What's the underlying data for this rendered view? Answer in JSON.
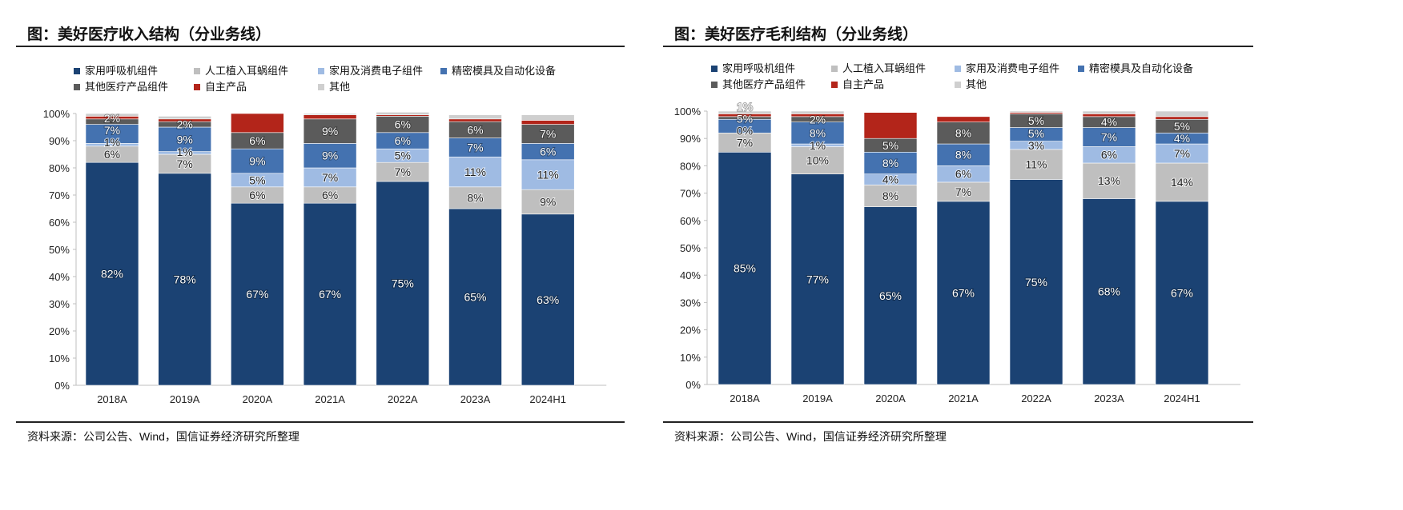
{
  "chart_data": [
    {
      "type": "bar",
      "stacked": true,
      "title": "图：美好医疗收入结构（分业务线）",
      "source": "资料来源：公司公告、Wind，国信证券经济研究所整理",
      "categories": [
        "2018A",
        "2019A",
        "2020A",
        "2021A",
        "2022A",
        "2023A",
        "2024H1"
      ],
      "ylim": [
        0,
        100
      ],
      "yticks": [
        "0%",
        "10%",
        "20%",
        "30%",
        "40%",
        "50%",
        "60%",
        "70%",
        "80%",
        "90%",
        "100%"
      ],
      "legend_position": "top-left",
      "series": [
        {
          "name": "家用呼吸机组件",
          "color": "#1b4273",
          "values": [
            82,
            78,
            67,
            67,
            75,
            65,
            63
          ],
          "labels": [
            "82%",
            "78%",
            "67%",
            "67%",
            "75%",
            "65%",
            "63%"
          ]
        },
        {
          "name": "人工植入耳蜗组件",
          "color": "#bfbfbf",
          "values": [
            6,
            7,
            6,
            6,
            7,
            8,
            9
          ],
          "labels": [
            "6%",
            "7%",
            "6%",
            "6%",
            "7%",
            "8%",
            "9%"
          ]
        },
        {
          "name": "家用及消费电子组件",
          "color": "#9fbbe3",
          "values": [
            1,
            1,
            5,
            7,
            5,
            11,
            11
          ],
          "labels": [
            "1%",
            "1%",
            "5%",
            "7%",
            "5%",
            "11%",
            "11%"
          ]
        },
        {
          "name": "精密模具及自动化设备",
          "color": "#4472b0",
          "values": [
            7,
            9,
            9,
            9,
            6,
            7,
            6
          ],
          "labels": [
            "7%",
            "9%",
            "9%",
            "9%",
            "6%",
            "7%",
            "6%"
          ]
        },
        {
          "name": "其他医疗产品组件",
          "color": "#5b5b5b",
          "values": [
            2,
            2,
            6,
            9,
            6,
            6,
            7
          ],
          "labels": [
            "2%",
            "2%",
            "6%",
            "9%",
            "6%",
            "6%",
            "7%"
          ]
        },
        {
          "name": "自主产品",
          "color": "#b3251a",
          "values": [
            1,
            1,
            7,
            1.5,
            0.5,
            1,
            1.5
          ],
          "labels": [
            "",
            "",
            "",
            "",
            "",
            "",
            ""
          ]
        },
        {
          "name": "其他",
          "color": "#cfcfcf",
          "values": [
            1,
            1,
            0,
            0.5,
            1,
            1.5,
            2
          ],
          "labels": [
            "",
            "",
            "",
            "",
            "",
            "",
            ""
          ]
        }
      ]
    },
    {
      "type": "bar",
      "stacked": true,
      "title": "图：美好医疗毛利结构（分业务线）",
      "source": "资料来源：公司公告、Wind，国信证券经济研究所整理",
      "categories": [
        "2018A",
        "2019A",
        "2020A",
        "2021A",
        "2022A",
        "2023A",
        "2024H1"
      ],
      "ylim": [
        0,
        100
      ],
      "yticks": [
        "0%",
        "10%",
        "20%",
        "30%",
        "40%",
        "50%",
        "60%",
        "70%",
        "80%",
        "90%",
        "100%"
      ],
      "legend_position": "top-left",
      "series": [
        {
          "name": "家用呼吸机组件",
          "color": "#1b4273",
          "values": [
            85,
            77,
            65,
            67,
            75,
            68,
            67
          ],
          "labels": [
            "85%",
            "77%",
            "65%",
            "67%",
            "75%",
            "68%",
            "67%"
          ]
        },
        {
          "name": "人工植入耳蜗组件",
          "color": "#bfbfbf",
          "values": [
            7,
            10,
            8,
            7,
            11,
            13,
            14
          ],
          "labels": [
            "7%",
            "10%",
            "8%",
            "7%",
            "11%",
            "13%",
            "14%"
          ]
        },
        {
          "name": "家用及消费电子组件",
          "color": "#9fbbe3",
          "values": [
            0,
            1,
            4,
            6,
            3,
            6,
            7
          ],
          "labels": [
            "0%",
            "1%",
            "4%",
            "6%",
            "3%",
            "6%",
            "7%"
          ]
        },
        {
          "name": "精密模具及自动化设备",
          "color": "#4472b0",
          "values": [
            5,
            8,
            8,
            8,
            5,
            7,
            4
          ],
          "labels": [
            "5%",
            "8%",
            "8%",
            "8%",
            "5%",
            "7%",
            "4%"
          ]
        },
        {
          "name": "其他医疗产品组件",
          "color": "#5b5b5b",
          "values": [
            1,
            2,
            5,
            8,
            5,
            4,
            5
          ],
          "labels": [
            "1%",
            "2%",
            "5%",
            "8%",
            "5%",
            "4%",
            "5%"
          ]
        },
        {
          "name": "自主产品",
          "color": "#b3251a",
          "values": [
            1,
            1,
            9.5,
            2,
            0.5,
            1,
            1
          ],
          "labels": [
            "",
            "",
            "",
            "",
            "",
            "",
            ""
          ]
        },
        {
          "name": "其他",
          "color": "#cfcfcf",
          "values": [
            1,
            1,
            0,
            0,
            0.5,
            1,
            2
          ],
          "labels": [
            "",
            "",
            "",
            "",
            "",
            "",
            ""
          ]
        }
      ]
    }
  ]
}
